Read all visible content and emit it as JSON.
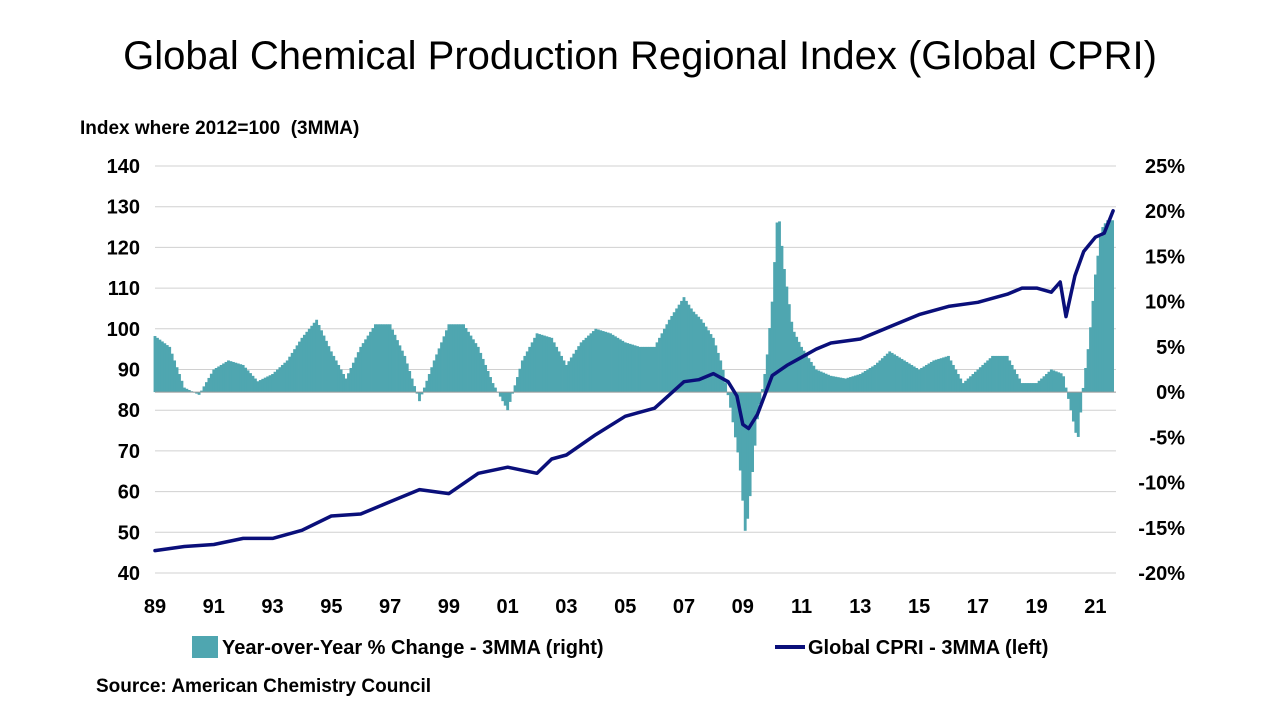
{
  "title": "Global Chemical Production Regional Index (Global CPRI)",
  "subtitle": "Index where 2012=100  (3MMA)",
  "source": "Source: American Chemistry Council",
  "colors": {
    "bars": "#4fa6b0",
    "line": "#0a0f7a",
    "grid": "#d0d0d0"
  },
  "chart_data": {
    "type": "bar+line",
    "x_ticks": [
      "89",
      "91",
      "93",
      "95",
      "97",
      "99",
      "01",
      "03",
      "05",
      "07",
      "09",
      "11",
      "13",
      "15",
      "17",
      "19",
      "21"
    ],
    "y_left": {
      "ylim": [
        40,
        140
      ],
      "ticks": [
        "40",
        "50",
        "60",
        "70",
        "80",
        "90",
        "100",
        "110",
        "120",
        "130",
        "140"
      ]
    },
    "y_right": {
      "ylim": [
        -20,
        25
      ],
      "ticks": [
        "-20%",
        "-15%",
        "-10%",
        "-5%",
        "0%",
        "5%",
        "10%",
        "15%",
        "20%",
        "25%"
      ]
    },
    "series": [
      {
        "name": "Year-over-Year % Change - 3MMA (right)",
        "type": "bar",
        "axis": "right",
        "x": [
          1989.0,
          1989.5,
          1990.0,
          1990.5,
          1991.0,
          1991.5,
          1992.0,
          1992.5,
          1993.0,
          1993.5,
          1994.0,
          1994.5,
          1995.0,
          1995.5,
          1996.0,
          1996.5,
          1997.0,
          1997.5,
          1998.0,
          1998.5,
          1999.0,
          1999.5,
          2000.0,
          2000.5,
          2001.0,
          2001.5,
          2002.0,
          2002.5,
          2003.0,
          2003.5,
          2004.0,
          2004.5,
          2005.0,
          2005.5,
          2006.0,
          2006.5,
          2007.0,
          2007.3,
          2007.6,
          2008.0,
          2008.3,
          2008.6,
          2008.9,
          2009.1,
          2009.3,
          2009.5,
          2009.8,
          2010.0,
          2010.2,
          2010.4,
          2010.7,
          2011.0,
          2011.5,
          2012.0,
          2012.5,
          2013.0,
          2013.5,
          2014.0,
          2014.5,
          2015.0,
          2015.5,
          2016.0,
          2016.5,
          2017.0,
          2017.5,
          2018.0,
          2018.5,
          2019.0,
          2019.5,
          2019.9,
          2020.2,
          2020.4,
          2020.6,
          2020.8,
          2021.0,
          2021.2,
          2021.4,
          2021.6
        ],
        "values": [
          6.2,
          5.0,
          0.5,
          -0.3,
          2.5,
          3.5,
          3.0,
          1.2,
          2.0,
          3.5,
          6.0,
          8.0,
          4.5,
          1.5,
          5.0,
          7.5,
          7.5,
          4.0,
          -1.0,
          3.5,
          7.5,
          7.5,
          5.0,
          1.0,
          -2.0,
          3.5,
          6.5,
          6.0,
          3.0,
          5.5,
          7.0,
          6.5,
          5.5,
          5.0,
          5.0,
          8.0,
          10.5,
          9.0,
          8.0,
          6.0,
          3.0,
          -2.0,
          -8.0,
          -16.0,
          -10.0,
          -3.0,
          3.0,
          10.0,
          20.5,
          14.0,
          7.0,
          5.0,
          2.5,
          1.8,
          1.5,
          2.0,
          3.0,
          4.5,
          3.5,
          2.5,
          3.5,
          4.0,
          1.0,
          2.5,
          4.0,
          4.0,
          1.0,
          1.0,
          2.5,
          2.0,
          -2.5,
          -5.5,
          1.0,
          6.0,
          13.0,
          18.0,
          19.0,
          19.0
        ]
      },
      {
        "name": "Global CPRI - 3MMA (left)",
        "type": "line",
        "axis": "left",
        "x": [
          1989.0,
          1990.0,
          1991.0,
          1992.0,
          1993.0,
          1994.0,
          1995.0,
          1996.0,
          1997.0,
          1998.0,
          1999.0,
          2000.0,
          2001.0,
          2002.0,
          2002.5,
          2003.0,
          2004.0,
          2005.0,
          2006.0,
          2007.0,
          2007.5,
          2008.0,
          2008.5,
          2008.8,
          2009.0,
          2009.2,
          2009.5,
          2010.0,
          2010.5,
          2011.0,
          2011.5,
          2012.0,
          2013.0,
          2014.0,
          2015.0,
          2016.0,
          2017.0,
          2018.0,
          2018.5,
          2019.0,
          2019.5,
          2019.8,
          2020.0,
          2020.3,
          2020.6,
          2021.0,
          2021.3,
          2021.6
        ],
        "values": [
          45.5,
          46.5,
          47.0,
          48.5,
          48.5,
          50.5,
          54.0,
          54.5,
          57.5,
          60.5,
          59.5,
          64.5,
          66.0,
          64.5,
          68.0,
          69.0,
          74.0,
          78.5,
          80.5,
          87.0,
          87.5,
          89.0,
          87.0,
          83.5,
          76.5,
          75.5,
          79.0,
          88.5,
          91.0,
          93.0,
          95.0,
          96.5,
          97.5,
          100.5,
          103.5,
          105.5,
          106.5,
          108.5,
          110.0,
          110.0,
          109.0,
          111.5,
          103.0,
          113.0,
          119.0,
          122.5,
          123.5,
          129.0
        ]
      }
    ],
    "legend_position": "bottom",
    "grid": true
  }
}
